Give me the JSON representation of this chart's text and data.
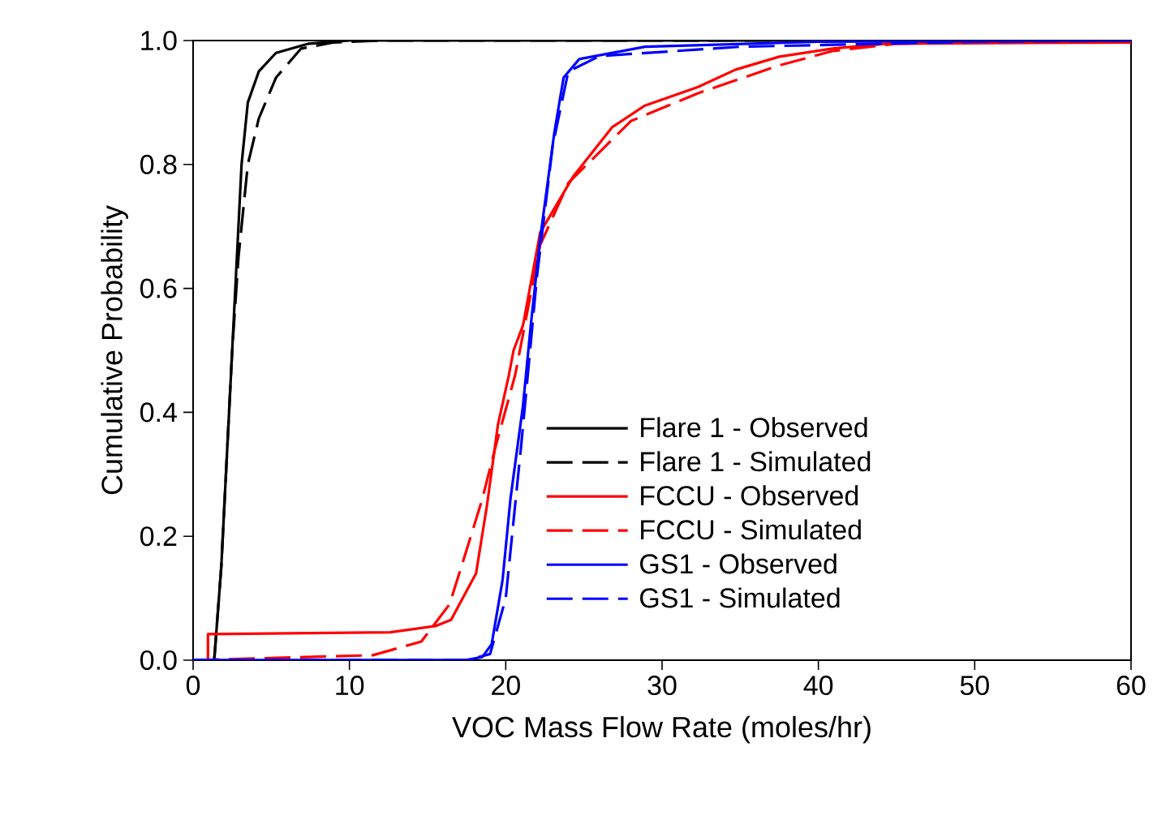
{
  "chart_data": {
    "type": "line",
    "xlabel": "VOC Mass Flow Rate (moles/hr)",
    "ylabel": "Cumulative Probability",
    "xlim": [
      0,
      60
    ],
    "ylim": [
      0,
      1.0
    ],
    "xticks": [
      0,
      10,
      20,
      30,
      40,
      50,
      60
    ],
    "yticks": [
      {
        "value": 0,
        "label": "0.0"
      },
      {
        "value": 0.2,
        "label": "0.2"
      },
      {
        "value": 0.4,
        "label": "0.4"
      },
      {
        "value": 0.6,
        "label": "0.6"
      },
      {
        "value": 0.8,
        "label": "0.8"
      },
      {
        "value": 1.0,
        "label": "1.0"
      }
    ],
    "grid": false,
    "legend": "bottom right",
    "marker": "none",
    "series": [
      {
        "name": "Flare 1 - Observed",
        "color": "#000000",
        "line_style": "solid",
        "x": [
          1.35,
          1.8,
          2.2,
          2.5,
          2.8,
          3.1,
          3.5,
          4.2,
          5.3,
          7.4,
          10,
          60
        ],
        "values": [
          0,
          0.15,
          0.35,
          0.5,
          0.65,
          0.8,
          0.9,
          0.95,
          0.98,
          0.995,
          1.0,
          1.0
        ]
      },
      {
        "name": "Flare 1 - Simulated",
        "color": "#000000",
        "line_style": "dashed",
        "x": [
          1.35,
          1.8,
          2.2,
          2.5,
          2.9,
          3.5,
          4.2,
          5.3,
          6.9,
          9,
          12,
          60
        ],
        "values": [
          0,
          0.15,
          0.35,
          0.5,
          0.65,
          0.8,
          0.874,
          0.94,
          0.987,
          0.997,
          1.0,
          1.0
        ]
      },
      {
        "name": "FCCU - Observed",
        "color": "#ff0000",
        "line_style": "solid",
        "x": [
          0,
          0.95,
          0.95,
          12.6,
          15.5,
          16.5,
          18.1,
          18.8,
          19.5,
          20.2,
          20.5,
          21.1,
          22.2,
          24.3,
          26.8,
          28.9,
          32.3,
          34.7,
          37.5,
          40.9,
          44.4,
          60
        ],
        "values": [
          0,
          0,
          0.042,
          0.045,
          0.055,
          0.065,
          0.14,
          0.25,
          0.38,
          0.46,
          0.5,
          0.54,
          0.69,
          0.78,
          0.86,
          0.895,
          0.925,
          0.953,
          0.974,
          0.987,
          0.995,
          0.997
        ]
      },
      {
        "name": "FCCU - Simulated",
        "color": "#ff0000",
        "line_style": "dashed",
        "x": [
          0,
          11.5,
          14.6,
          16.4,
          17.4,
          18.5,
          19.3,
          20.6,
          22.2,
          24.0,
          28.0,
          32.3,
          37.5,
          40.9,
          45.0,
          60
        ],
        "values": [
          0,
          0.008,
          0.03,
          0.09,
          0.17,
          0.26,
          0.34,
          0.46,
          0.67,
          0.77,
          0.87,
          0.915,
          0.96,
          0.983,
          0.995,
          1.0
        ]
      },
      {
        "name": "GS1 - Observed",
        "color": "#0000ff",
        "line_style": "solid",
        "x": [
          0,
          17.4,
          18.5,
          19.1,
          19.8,
          20.3,
          21.1,
          21.6,
          22.2,
          23.1,
          23.7,
          24.7,
          28.9,
          40,
          60
        ],
        "values": [
          0,
          0,
          0.005,
          0.026,
          0.13,
          0.26,
          0.41,
          0.54,
          0.68,
          0.85,
          0.94,
          0.97,
          0.99,
          0.998,
          1.0
        ]
      },
      {
        "name": "GS1 - Simulated",
        "color": "#0000ff",
        "line_style": "dashed",
        "x": [
          0,
          17.5,
          19,
          20,
          21,
          22,
          23,
          24,
          26,
          35,
          50,
          60
        ],
        "values": [
          0,
          0,
          0.01,
          0.1,
          0.35,
          0.62,
          0.83,
          0.95,
          0.975,
          0.99,
          0.998,
          1.0
        ]
      }
    ]
  }
}
